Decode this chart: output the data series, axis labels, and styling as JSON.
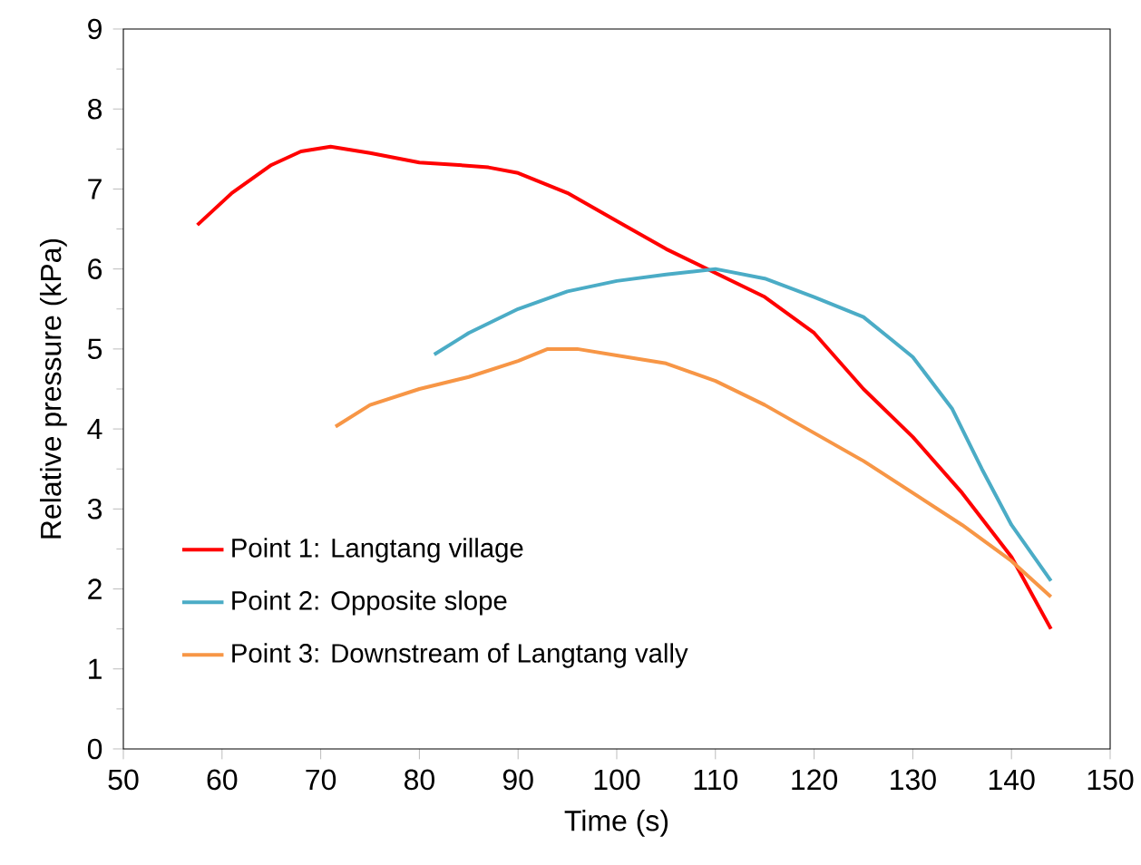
{
  "chart_data": {
    "type": "line",
    "xlabel": "Time (s)",
    "ylabel": "Relative pressure (kPa)",
    "xlim": [
      50,
      150
    ],
    "ylim": [
      0,
      9
    ],
    "xticks": [
      50,
      60,
      70,
      80,
      90,
      100,
      110,
      120,
      130,
      140,
      150
    ],
    "yticks": [
      0,
      1,
      2,
      3,
      4,
      5,
      6,
      7,
      8,
      9
    ],
    "grid": false,
    "legend": "bottom left",
    "marker": "none",
    "line_style": "solid",
    "series": [
      {
        "name": "Point 1: Langtang village",
        "color": "#ff0000",
        "x": [
          57.5,
          61,
          65,
          68,
          71,
          75,
          80,
          84,
          87,
          90,
          95,
          100,
          105,
          110,
          115,
          120,
          125,
          130,
          135,
          140,
          144
        ],
        "values": [
          6.55,
          6.95,
          7.3,
          7.47,
          7.53,
          7.45,
          7.33,
          7.3,
          7.27,
          7.2,
          6.95,
          6.6,
          6.25,
          5.95,
          5.65,
          5.2,
          4.5,
          3.9,
          3.2,
          2.4,
          1.5
        ]
      },
      {
        "name": "Point 2: Opposite slope",
        "color": "#4bacc6",
        "x": [
          81.5,
          85,
          90,
          95,
          100,
          105,
          110,
          115,
          120,
          125,
          128,
          130,
          134,
          137,
          140,
          144
        ],
        "values": [
          4.93,
          5.2,
          5.5,
          5.72,
          5.85,
          5.93,
          6.0,
          5.88,
          5.65,
          5.4,
          5.1,
          4.9,
          4.25,
          3.5,
          2.8,
          2.1
        ]
      },
      {
        "name": "Point 3: Downstream of Langtang vally",
        "color": "#f79646",
        "x": [
          71.5,
          75,
          80,
          85,
          90,
          93,
          96,
          100,
          105,
          110,
          115,
          120,
          125,
          130,
          135,
          140,
          144
        ],
        "values": [
          4.03,
          4.3,
          4.5,
          4.65,
          4.85,
          5.0,
          5.0,
          4.92,
          4.82,
          4.6,
          4.3,
          3.95,
          3.6,
          3.2,
          2.8,
          2.35,
          1.9
        ]
      }
    ]
  }
}
